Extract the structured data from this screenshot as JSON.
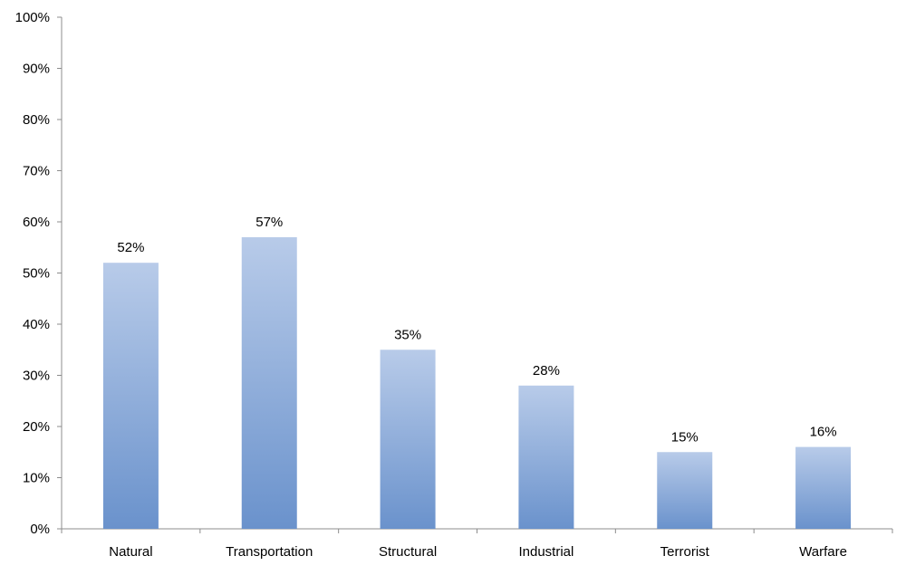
{
  "chart_data": {
    "type": "bar",
    "categories": [
      "Natural",
      "Transportation",
      "Structural",
      "Industrial",
      "Terrorist",
      "Warfare"
    ],
    "values": [
      52,
      57,
      35,
      28,
      15,
      16
    ],
    "data_labels": [
      "52%",
      "57%",
      "35%",
      "28%",
      "15%",
      "16%"
    ],
    "y_ticks": [
      "0%",
      "10%",
      "20%",
      "30%",
      "40%",
      "50%",
      "60%",
      "70%",
      "80%",
      "90%",
      "100%"
    ],
    "ylim": [
      0,
      100
    ],
    "y_unit": "%",
    "title": "",
    "xlabel": "",
    "ylabel": "",
    "grid": false,
    "legend": "none",
    "colors": {
      "bar_top": "#b8cbe9",
      "bar_bottom": "#6a92cc",
      "axis": "#8c8c8c",
      "text": "#000000"
    }
  }
}
